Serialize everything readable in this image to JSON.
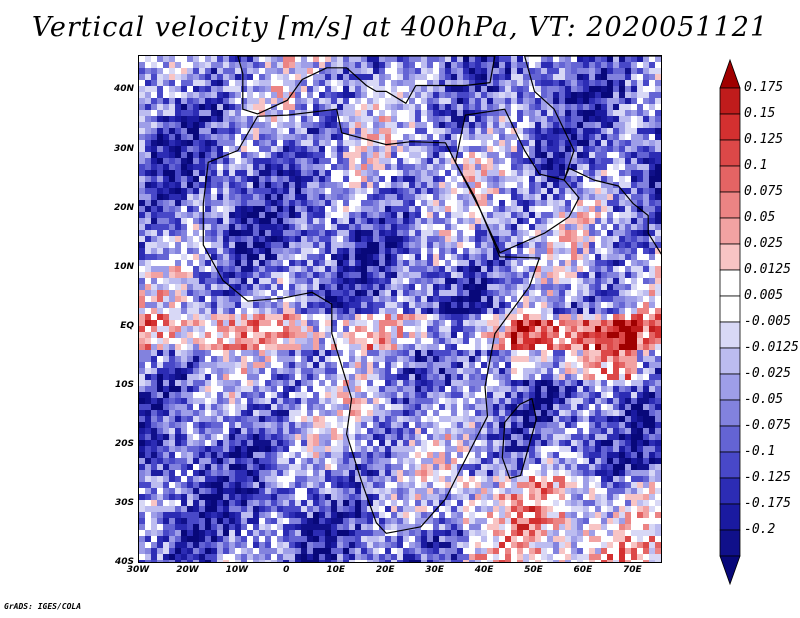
{
  "title": "Vertical velocity [m/s] at 400hPa, VT: 2020051121",
  "credit": "GrADS: IGES/COLA",
  "map": {
    "variable": "Vertical velocity",
    "units": "m/s",
    "level": "400hPa",
    "valid_time": "2020051121",
    "lon_range": [
      -30,
      76
    ],
    "lat_range": [
      -40,
      46
    ],
    "lon_ticks": [
      "30W",
      "20W",
      "10W",
      "0",
      "10E",
      "20E",
      "30E",
      "40E",
      "50E",
      "60E",
      "70E"
    ],
    "lon_tick_values": [
      -30,
      -20,
      -10,
      0,
      10,
      20,
      30,
      40,
      50,
      60,
      70
    ],
    "lat_ticks": [
      "40N",
      "30N",
      "20N",
      "10N",
      "EQ",
      "10S",
      "20S",
      "30S",
      "40S"
    ],
    "lat_tick_values": [
      40,
      30,
      20,
      10,
      0,
      -10,
      -20,
      -30,
      -40
    ]
  },
  "colorbar": {
    "labels": [
      "0.175",
      "0.15",
      "0.125",
      "0.1",
      "0.075",
      "0.05",
      "0.025",
      "0.0125",
      "0.005",
      "-0.005",
      "-0.0125",
      "-0.025",
      "-0.05",
      "-0.075",
      "-0.1",
      "-0.125",
      "-0.175",
      "-0.2"
    ],
    "colors": [
      "#a00000",
      "#c01c1c",
      "#d43030",
      "#dc4848",
      "#e46464",
      "#ec8484",
      "#f2a2a2",
      "#f8c4c4",
      "#ffffff",
      "#ffffff",
      "#d8d8f6",
      "#bcbcf0",
      "#9e9ee8",
      "#8282de",
      "#6464d4",
      "#4848c8",
      "#2c2cb4",
      "#1a1aa0",
      "#10108a",
      "#08087a"
    ]
  }
}
